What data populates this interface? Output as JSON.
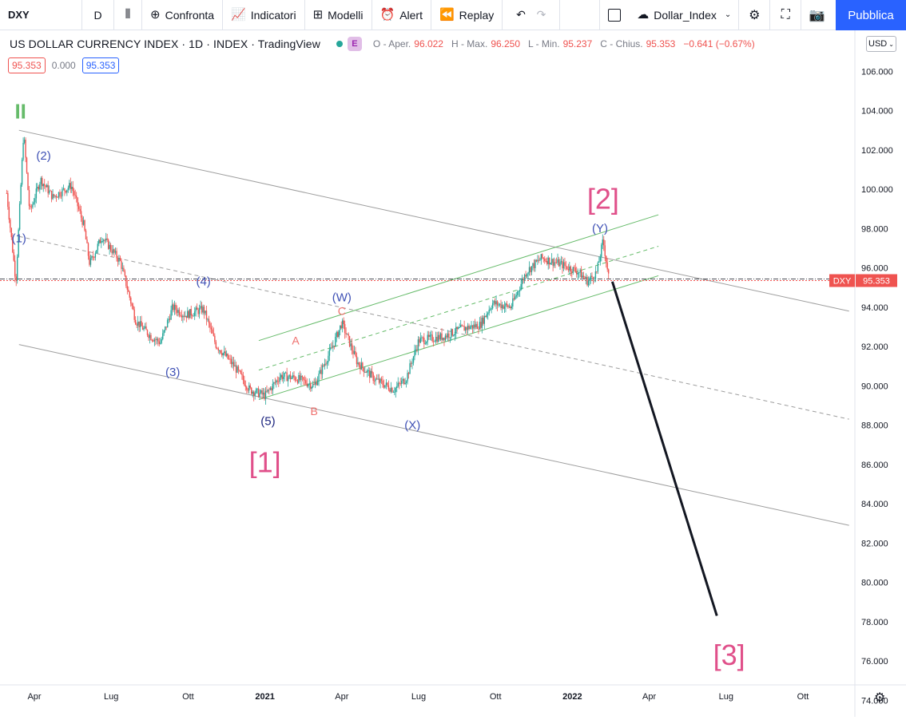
{
  "toolbar": {
    "symbol": "DXY",
    "interval": "D",
    "compare": "Confronta",
    "indicators": "Indicatori",
    "templates": "Modelli",
    "alert": "Alert",
    "replay": "Replay",
    "layout_name": "Dollar_Index",
    "publish": "Pubblica"
  },
  "legend": {
    "title": "US DOLLAR CURRENCY INDEX · 1D · INDEX · TradingView",
    "badge": "E",
    "open_label": "O - Aper.",
    "open": "96.022",
    "high_label": "H - Max.",
    "high": "96.250",
    "low_label": "L - Min.",
    "low": "95.237",
    "close_label": "C - Chius.",
    "close": "95.353",
    "change": "−0.641 (−0.67%)",
    "chip_sell": "95.353",
    "chip_spread": "0.000",
    "chip_buy": "95.353"
  },
  "currency": "USD",
  "colors": {
    "up": "#26a69a",
    "down": "#ef5350",
    "wave_pink": "#e0508a",
    "wave_blue": "#3f51b5",
    "channel_green": "#66bb6a",
    "channel_gray": "#9e9e9e",
    "projection": "#131722"
  },
  "chart_data": {
    "type": "candlestick",
    "symbol": "DXY",
    "ylim": [
      73.2,
      107.8
    ],
    "y_ticks": [
      "106.000",
      "104.000",
      "102.000",
      "100.000",
      "98.000",
      "96.000",
      "94.000",
      "92.000",
      "90.000",
      "88.000",
      "86.000",
      "84.000",
      "82.000",
      "80.000",
      "78.000",
      "76.000",
      "74.000"
    ],
    "x_tick_labels": [
      {
        "label": "Apr",
        "t": 2020.25,
        "bold": false
      },
      {
        "label": "Lug",
        "t": 2020.5,
        "bold": false
      },
      {
        "label": "Ott",
        "t": 2020.75,
        "bold": false
      },
      {
        "label": "2021",
        "t": 2021.0,
        "bold": true
      },
      {
        "label": "Apr",
        "t": 2021.25,
        "bold": false
      },
      {
        "label": "Lug",
        "t": 2021.5,
        "bold": false
      },
      {
        "label": "Ott",
        "t": 2021.75,
        "bold": false
      },
      {
        "label": "2022",
        "t": 2022.0,
        "bold": true
      },
      {
        "label": "Apr",
        "t": 2022.25,
        "bold": false
      },
      {
        "label": "Lug",
        "t": 2022.5,
        "bold": false
      },
      {
        "label": "Ott",
        "t": 2022.75,
        "bold": false
      }
    ],
    "price_path": [
      {
        "t": 2020.16,
        "v": 99.8
      },
      {
        "t": 2020.19,
        "v": 95.3
      },
      {
        "t": 2020.215,
        "v": 102.9
      },
      {
        "t": 2020.235,
        "v": 98.8
      },
      {
        "t": 2020.27,
        "v": 100.5
      },
      {
        "t": 2020.31,
        "v": 99.6
      },
      {
        "t": 2020.37,
        "v": 100.2
      },
      {
        "t": 2020.41,
        "v": 98.2
      },
      {
        "t": 2020.43,
        "v": 96.2
      },
      {
        "t": 2020.47,
        "v": 97.6
      },
      {
        "t": 2020.53,
        "v": 96.3
      },
      {
        "t": 2020.58,
        "v": 93.3
      },
      {
        "t": 2020.63,
        "v": 92.5
      },
      {
        "t": 2020.66,
        "v": 92.2
      },
      {
        "t": 2020.7,
        "v": 94.0
      },
      {
        "t": 2020.74,
        "v": 93.6
      },
      {
        "t": 2020.8,
        "v": 93.9
      },
      {
        "t": 2020.84,
        "v": 92.1
      },
      {
        "t": 2020.9,
        "v": 91.0
      },
      {
        "t": 2020.95,
        "v": 89.8
      },
      {
        "t": 2021.0,
        "v": 89.5
      },
      {
        "t": 2021.05,
        "v": 90.5
      },
      {
        "t": 2021.1,
        "v": 90.4
      },
      {
        "t": 2021.16,
        "v": 90.0
      },
      {
        "t": 2021.22,
        "v": 92.0
      },
      {
        "t": 2021.25,
        "v": 93.2
      },
      {
        "t": 2021.3,
        "v": 91.2
      },
      {
        "t": 2021.36,
        "v": 90.3
      },
      {
        "t": 2021.42,
        "v": 89.8
      },
      {
        "t": 2021.46,
        "v": 90.4
      },
      {
        "t": 2021.5,
        "v": 92.3
      },
      {
        "t": 2021.58,
        "v": 92.5
      },
      {
        "t": 2021.64,
        "v": 92.9
      },
      {
        "t": 2021.7,
        "v": 93.1
      },
      {
        "t": 2021.74,
        "v": 94.2
      },
      {
        "t": 2021.8,
        "v": 94.0
      },
      {
        "t": 2021.85,
        "v": 95.8
      },
      {
        "t": 2021.9,
        "v": 96.5
      },
      {
        "t": 2021.96,
        "v": 96.2
      },
      {
        "t": 2022.02,
        "v": 95.8
      },
      {
        "t": 2022.05,
        "v": 95.3
      },
      {
        "t": 2022.08,
        "v": 95.8
      },
      {
        "t": 2022.1,
        "v": 97.4
      },
      {
        "t": 2022.12,
        "v": 95.35
      }
    ],
    "last_price": {
      "symbol": "DXY",
      "value": "95.353"
    },
    "trend_lines": [
      {
        "name": "upper-channel",
        "from": {
          "t": 2020.2,
          "v": 103.0
        },
        "to": {
          "t": 2022.9,
          "v": 93.8
        },
        "style": "solid",
        "color": "gray"
      },
      {
        "name": "mid-channel",
        "from": {
          "t": 2020.2,
          "v": 97.6
        },
        "to": {
          "t": 2022.9,
          "v": 88.3
        },
        "style": "dashed",
        "color": "gray"
      },
      {
        "name": "lower-channel",
        "from": {
          "t": 2020.2,
          "v": 92.1
        },
        "to": {
          "t": 2022.9,
          "v": 82.9
        },
        "style": "solid",
        "color": "gray"
      },
      {
        "name": "green-upper",
        "from": {
          "t": 2020.98,
          "v": 92.3
        },
        "to": {
          "t": 2022.28,
          "v": 98.7
        },
        "style": "solid",
        "color": "green"
      },
      {
        "name": "green-mid",
        "from": {
          "t": 2020.98,
          "v": 90.8
        },
        "to": {
          "t": 2022.28,
          "v": 97.1
        },
        "style": "dashed",
        "color": "green"
      },
      {
        "name": "green-lower",
        "from": {
          "t": 2020.98,
          "v": 89.3
        },
        "to": {
          "t": 2022.28,
          "v": 95.6
        },
        "style": "solid",
        "color": "green"
      },
      {
        "name": "projection",
        "from": {
          "t": 2022.13,
          "v": 95.3
        },
        "to": {
          "t": 2022.47,
          "v": 78.3
        },
        "style": "solid",
        "color": "black"
      }
    ],
    "annotations": [
      {
        "text": "II",
        "t": 2020.205,
        "v": 103.6,
        "size": 26,
        "color": "green",
        "weight": "bold"
      },
      {
        "text": "(2)",
        "t": 2020.28,
        "v": 101.5,
        "size": 15,
        "color": "blue"
      },
      {
        "text": "(1)",
        "t": 2020.2,
        "v": 97.3,
        "size": 15,
        "color": "blue"
      },
      {
        "text": "(4)",
        "t": 2020.8,
        "v": 95.1,
        "size": 15,
        "color": "blue"
      },
      {
        "text": "(3)",
        "t": 2020.7,
        "v": 90.5,
        "size": 15,
        "color": "blue"
      },
      {
        "text": "(5)",
        "t": 2021.01,
        "v": 88.0,
        "size": 15,
        "color": "navy"
      },
      {
        "text": "[1]",
        "t": 2021.0,
        "v": 85.6,
        "size": 36,
        "color": "pink"
      },
      {
        "text": "A",
        "t": 2021.1,
        "v": 92.1,
        "size": 14,
        "color": "salmon"
      },
      {
        "text": "B",
        "t": 2021.16,
        "v": 88.5,
        "size": 14,
        "color": "salmon"
      },
      {
        "text": "C",
        "t": 2021.25,
        "v": 93.6,
        "size": 14,
        "color": "salmon"
      },
      {
        "text": "(W)",
        "t": 2021.25,
        "v": 94.3,
        "size": 15,
        "color": "blue"
      },
      {
        "text": "(X)",
        "t": 2021.48,
        "v": 87.8,
        "size": 15,
        "color": "blue"
      },
      {
        "text": "(Y)",
        "t": 2022.09,
        "v": 97.8,
        "size": 15,
        "color": "blue"
      },
      {
        "text": "[2]",
        "t": 2022.1,
        "v": 99.0,
        "size": 36,
        "color": "pink"
      },
      {
        "text": "[3]",
        "t": 2022.51,
        "v": 75.8,
        "size": 36,
        "color": "pink"
      }
    ]
  }
}
